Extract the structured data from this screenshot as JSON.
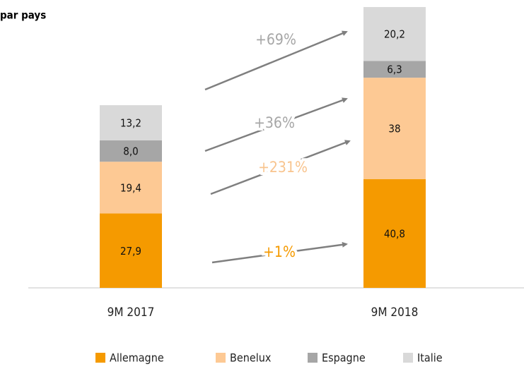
{
  "chart_data": {
    "type": "stacked_bar",
    "title": "par pays",
    "categories": [
      "9M 2017",
      "9M 2018"
    ],
    "series": [
      {
        "name": "Allemagne",
        "color": "#f59a00",
        "values": [
          27.9,
          40.8
        ],
        "value_labels": [
          "27,9",
          "40,8"
        ]
      },
      {
        "name": "Benelux",
        "color": "#fdc994",
        "values": [
          19.4,
          38
        ],
        "value_labels": [
          "19,4",
          "38"
        ]
      },
      {
        "name": "Espagne",
        "color": "#a6a6a6",
        "values": [
          8.0,
          6.3
        ],
        "value_labels": [
          "8,0",
          "6,3"
        ]
      },
      {
        "name": "Italie",
        "color": "#d9d9d9",
        "values": [
          13.2,
          20.2
        ],
        "value_labels": [
          "13,2",
          "20,2"
        ]
      }
    ],
    "annotations": [
      {
        "text": "+69%",
        "color": "#a6a6a6"
      },
      {
        "text": "+36%",
        "color": "#a6a6a6"
      },
      {
        "text": "+231%",
        "color": "#f8c48e"
      },
      {
        "text": "+1%",
        "color": "#f59a00"
      }
    ],
    "legend": "bottom"
  }
}
